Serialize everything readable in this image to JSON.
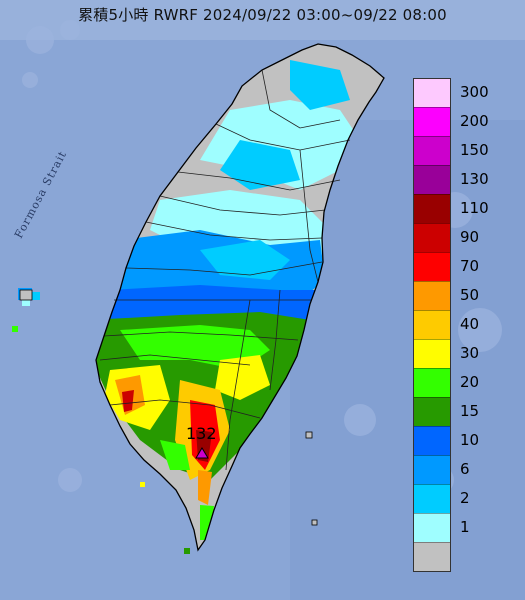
{
  "title": "累積5小時 RWRF 2024/09/22 03:00~09/22 08:00",
  "strait_label": "Formosa Strait",
  "max": {
    "value": "132",
    "marker": "triangle"
  },
  "legend": {
    "labels": [
      "300",
      "200",
      "150",
      "130",
      "110",
      "90",
      "70",
      "50",
      "40",
      "30",
      "20",
      "15",
      "10",
      "6",
      "2",
      "1"
    ],
    "colors": [
      "#fdc9fe",
      "#fc00fe",
      "#cc00cc",
      "#990099",
      "#990000",
      "#cc0000",
      "#fe0000",
      "#fe9900",
      "#fecb00",
      "#fffd00",
      "#33ff00",
      "#279a00",
      "#0066ff",
      "#0099ff",
      "#00ccff",
      "#9ffeff",
      "#c1c1c1"
    ]
  },
  "colors": {
    "ocean": "#8aa6d6",
    "ocean_deep": "#7d9ad0",
    "county_line": "#222222",
    "coast": "#000000"
  }
}
